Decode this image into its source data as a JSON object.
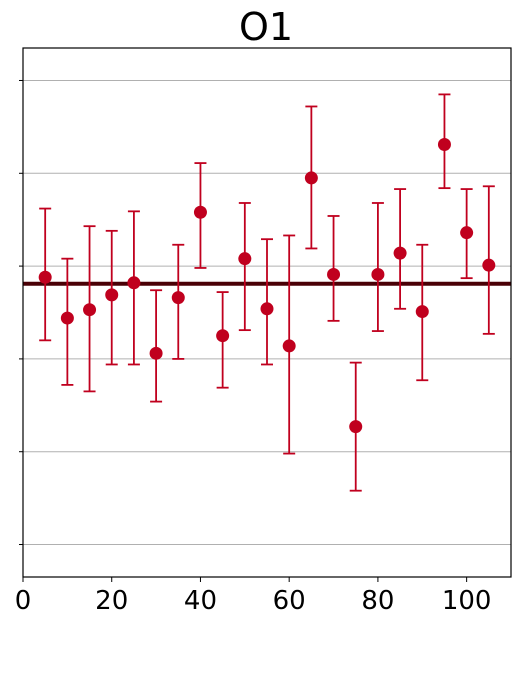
{
  "chart_data": {
    "type": "scatter",
    "title": "O1",
    "xlabel": "",
    "ylabel": "",
    "xlim": [
      0,
      110
    ],
    "ylim": [
      -2.85,
      2.85
    ],
    "x_ticks": [
      0,
      20,
      40,
      60,
      80,
      100
    ],
    "y_ticks": [
      -2.5,
      -1.5,
      -0.5,
      0.5,
      1.5,
      2.5
    ],
    "y_tick_labels_visible": false,
    "grid": "horizontal",
    "reference_line": 0.31,
    "series": [
      {
        "points": [
          {
            "x": 5,
            "y": 0.38,
            "err_low": 0.68,
            "err_high": 0.74
          },
          {
            "x": 10,
            "y": -0.06,
            "err_low": 0.72,
            "err_high": 0.64
          },
          {
            "x": 15,
            "y": 0.03,
            "err_low": 0.88,
            "err_high": 0.9
          },
          {
            "x": 20,
            "y": 0.19,
            "err_low": 0.75,
            "err_high": 0.69
          },
          {
            "x": 25,
            "y": 0.32,
            "err_low": 0.88,
            "err_high": 0.77
          },
          {
            "x": 30,
            "y": -0.44,
            "err_low": 0.52,
            "err_high": 0.68
          },
          {
            "x": 35,
            "y": 0.16,
            "err_low": 0.66,
            "err_high": 0.57
          },
          {
            "x": 40,
            "y": 1.08,
            "err_low": 0.6,
            "err_high": 0.53
          },
          {
            "x": 45,
            "y": -0.25,
            "err_low": 0.56,
            "err_high": 0.47
          },
          {
            "x": 50,
            "y": 0.58,
            "err_low": 0.77,
            "err_high": 0.6
          },
          {
            "x": 55,
            "y": 0.04,
            "err_low": 0.6,
            "err_high": 0.75
          },
          {
            "x": 60,
            "y": -0.36,
            "err_low": 1.16,
            "err_high": 1.19
          },
          {
            "x": 65,
            "y": 1.45,
            "err_low": 0.76,
            "err_high": 0.77
          },
          {
            "x": 70,
            "y": 0.41,
            "err_low": 0.5,
            "err_high": 0.63
          },
          {
            "x": 75,
            "y": -1.23,
            "err_low": 0.69,
            "err_high": 0.69
          },
          {
            "x": 80,
            "y": 0.41,
            "err_low": 0.61,
            "err_high": 0.77
          },
          {
            "x": 85,
            "y": 0.64,
            "err_low": 0.6,
            "err_high": 0.69
          },
          {
            "x": 90,
            "y": 0.01,
            "err_low": 0.74,
            "err_high": 0.72
          },
          {
            "x": 95,
            "y": 1.81,
            "err_low": 0.47,
            "err_high": 0.54
          },
          {
            "x": 100,
            "y": 0.86,
            "err_low": 0.49,
            "err_high": 0.47
          },
          {
            "x": 105,
            "y": 0.51,
            "err_low": 0.74,
            "err_high": 0.85
          }
        ]
      }
    ]
  },
  "colors": {
    "points": "#c0001e",
    "reference_line": "#4a0006",
    "grid": "#b0b0b0",
    "axis": "#000000"
  }
}
